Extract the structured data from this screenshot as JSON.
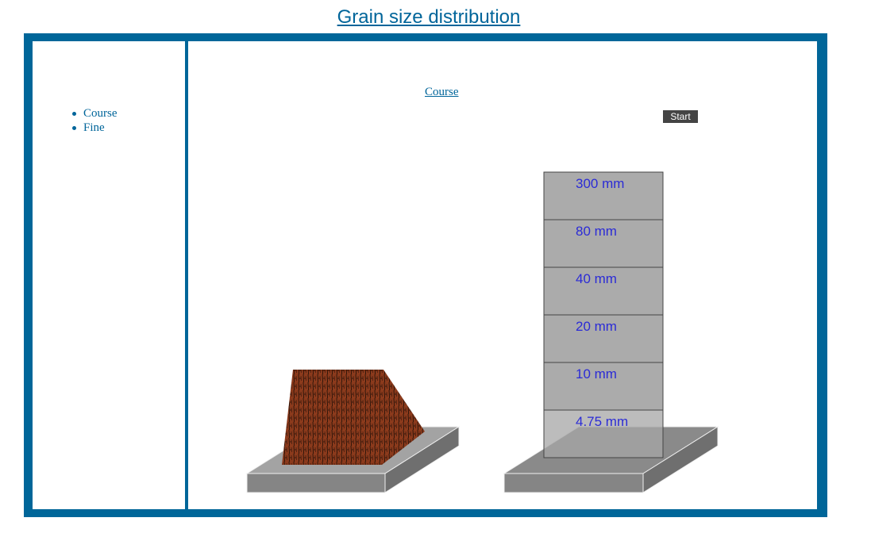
{
  "title": "Grain size distribution",
  "sidebar": {
    "items": [
      {
        "label": "Course"
      },
      {
        "label": "Fine"
      }
    ]
  },
  "main": {
    "heading": "Course",
    "start_label": "Start"
  },
  "sieves": [
    {
      "label": "300 mm"
    },
    {
      "label": "80 mm"
    },
    {
      "label": "40 mm"
    },
    {
      "label": "20 mm"
    },
    {
      "label": "10 mm"
    },
    {
      "label": "4.75 mm"
    }
  ],
  "colors": {
    "frame": "#006699",
    "title": "#00659a",
    "sieve_label": "#2b2bd6",
    "sieve_fill": "#a6a6a6",
    "base_fill": "#858585",
    "soil": "#8b3a1c"
  }
}
